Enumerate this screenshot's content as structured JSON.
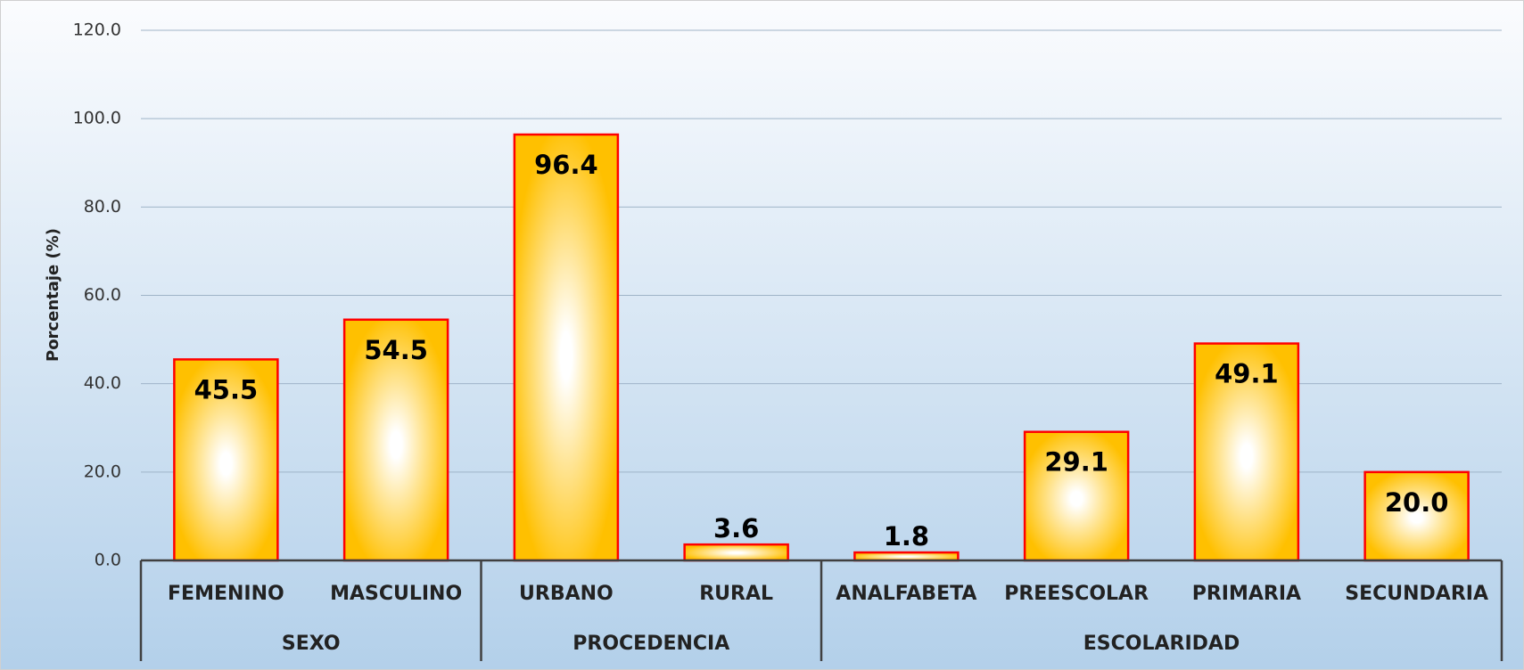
{
  "chart_data": {
    "type": "bar",
    "y_label": "Porcentaje (%)",
    "groups": [
      {
        "label": "SEXO",
        "categories": [
          "FEMENINO",
          "MASCULINO"
        ],
        "values": [
          45.5,
          54.5
        ],
        "value_labels": [
          "45.5",
          "54.5"
        ]
      },
      {
        "label": "PROCEDENCIA",
        "categories": [
          "URBANO",
          "RURAL"
        ],
        "values": [
          96.4,
          3.6
        ],
        "value_labels": [
          "96.4",
          "3.6"
        ]
      },
      {
        "label": "ESCOLARIDAD",
        "categories": [
          "ANALFABETA",
          "PREESCOLAR",
          "PRIMARIA",
          "SECUNDARIA"
        ],
        "values": [
          1.8,
          29.1,
          49.1,
          20.0
        ],
        "value_labels": [
          "1.8",
          "29.1",
          "49.1",
          "20.0"
        ]
      }
    ],
    "color": "#ffc000",
    "edge_color": "#ff0000",
    "ylim": [
      0,
      120
    ],
    "yticks": [
      {
        "value": 0,
        "label": "0.0"
      },
      {
        "value": 20,
        "label": "20.0"
      },
      {
        "value": 40,
        "label": "40.0"
      },
      {
        "value": 60,
        "label": "60.0"
      },
      {
        "value": 80,
        "label": "80.0"
      },
      {
        "value": 100,
        "label": "100.0"
      },
      {
        "value": 120,
        "label": "120.0"
      }
    ],
    "grid": true
  }
}
